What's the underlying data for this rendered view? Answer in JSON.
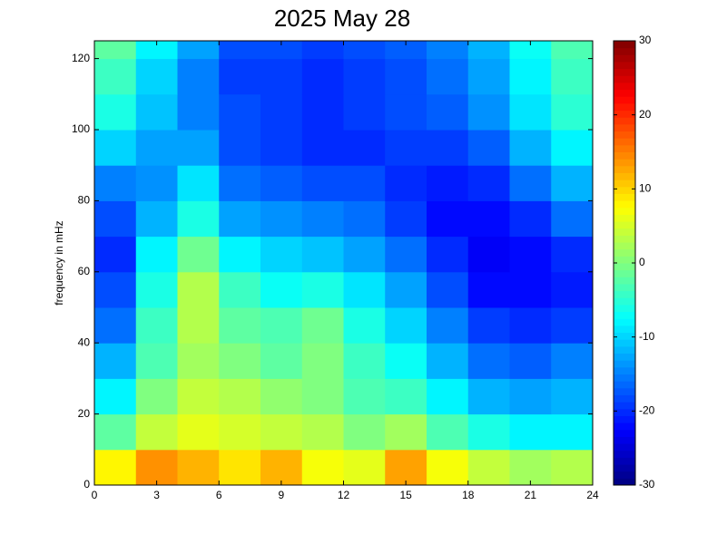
{
  "chart_data": {
    "type": "heatmap",
    "title": "2025 May 28",
    "y_label": "frequency in mHz",
    "colormap": "jet",
    "xbins": [
      0,
      2,
      4,
      6,
      8,
      10,
      12,
      14,
      16,
      18,
      20,
      22,
      24
    ],
    "ybins": [
      0,
      10,
      20,
      30,
      40,
      50,
      60,
      70,
      80,
      90,
      100,
      110,
      120,
      125
    ],
    "z": [
      [
        8,
        14,
        12,
        9,
        12,
        7,
        6,
        13,
        7,
        4,
        2,
        3
      ],
      [
        -2,
        4,
        6,
        5,
        4,
        3,
        0,
        2,
        -3,
        -6,
        -8,
        -8
      ],
      [
        -8,
        0,
        4,
        3,
        1,
        0,
        -3,
        -4,
        -8,
        -12,
        -13,
        -12
      ],
      [
        -12,
        -3,
        2,
        0,
        -2,
        0,
        -4,
        -7,
        -12,
        -16,
        -17,
        -15
      ],
      [
        -16,
        -4,
        3,
        -2,
        -3,
        -1,
        -6,
        -10,
        -15,
        -19,
        -20,
        -19
      ],
      [
        -18,
        -6,
        3,
        -4,
        -7,
        -6,
        -9,
        -13,
        -18,
        -22,
        -22,
        -21
      ],
      [
        -20,
        -8,
        -1,
        -8,
        -10,
        -11,
        -13,
        -16,
        -20,
        -23,
        -22,
        -20
      ],
      [
        -18,
        -12,
        -6,
        -13,
        -14,
        -15,
        -16,
        -19,
        -22,
        -22,
        -20,
        -16
      ],
      [
        -15,
        -14,
        -9,
        -16,
        -17,
        -18,
        -18,
        -20,
        -21,
        -20,
        -16,
        -12
      ],
      [
        -10,
        -13,
        -13,
        -18,
        -19,
        -20,
        -20,
        -19,
        -19,
        -17,
        -12,
        -8
      ],
      [
        -6,
        -11,
        -15,
        -18,
        -19,
        -20,
        -19,
        -18,
        -17,
        -14,
        -9,
        -5
      ],
      [
        -4,
        -10,
        -15,
        -19,
        -19,
        -20,
        -19,
        -18,
        -16,
        -13,
        -8,
        -4
      ],
      [
        -2,
        -8,
        -13,
        -18,
        -18,
        -19,
        -18,
        -17,
        -15,
        -12,
        -7,
        -3
      ]
    ],
    "xlim": [
      0,
      24
    ],
    "xticks": [
      0,
      3,
      6,
      9,
      12,
      15,
      18,
      21,
      24
    ],
    "ylim": [
      0,
      125
    ],
    "yticks": [
      0,
      20,
      40,
      60,
      80,
      100,
      120
    ],
    "zlim": [
      -30,
      30
    ],
    "zticks": [
      -30,
      -20,
      -10,
      0,
      10,
      20,
      30
    ]
  }
}
